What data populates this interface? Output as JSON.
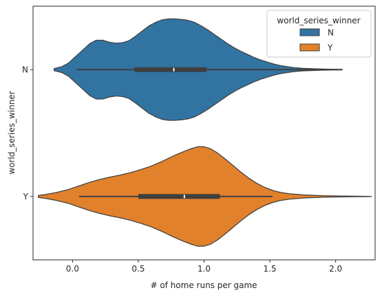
{
  "chart_data": {
    "type": "violin",
    "orientation": "horizontal",
    "xlabel": "# of home runs per game",
    "ylabel": "world_series_winner",
    "xlim": [
      -0.3,
      2.3
    ],
    "xticks": [
      0.0,
      0.5,
      1.0,
      1.5,
      2.0
    ],
    "xtick_labels": [
      "0.0",
      "0.5",
      "1.0",
      "1.5",
      "2.0"
    ],
    "categories": [
      "N",
      "Y"
    ],
    "legend": {
      "title": "world_series_winner",
      "placement": "top-right",
      "entries": [
        {
          "label": "N",
          "color": "#3274a1"
        },
        {
          "label": "Y",
          "color": "#e1812c"
        }
      ]
    },
    "series": [
      {
        "name": "N",
        "color": "#3274a1",
        "whisker": [
          0.03,
          2.05
        ],
        "quartiles": [
          0.47,
          1.02
        ],
        "median": 0.77,
        "density": [
          [
            -0.14,
            0.02
          ],
          [
            -0.08,
            0.06
          ],
          [
            -0.03,
            0.13
          ],
          [
            0.02,
            0.25
          ],
          [
            0.08,
            0.39
          ],
          [
            0.13,
            0.51
          ],
          [
            0.18,
            0.58
          ],
          [
            0.23,
            0.58
          ],
          [
            0.28,
            0.54
          ],
          [
            0.33,
            0.52
          ],
          [
            0.38,
            0.53
          ],
          [
            0.43,
            0.57
          ],
          [
            0.48,
            0.66
          ],
          [
            0.53,
            0.76
          ],
          [
            0.58,
            0.86
          ],
          [
            0.63,
            0.93
          ],
          [
            0.68,
            0.98
          ],
          [
            0.73,
            1.0
          ],
          [
            0.78,
            1.0
          ],
          [
            0.83,
            0.99
          ],
          [
            0.88,
            0.97
          ],
          [
            0.93,
            0.93
          ],
          [
            0.98,
            0.86
          ],
          [
            1.03,
            0.78
          ],
          [
            1.08,
            0.69
          ],
          [
            1.13,
            0.6
          ],
          [
            1.18,
            0.51
          ],
          [
            1.23,
            0.43
          ],
          [
            1.28,
            0.36
          ],
          [
            1.33,
            0.3
          ],
          [
            1.38,
            0.24
          ],
          [
            1.43,
            0.19
          ],
          [
            1.48,
            0.15
          ],
          [
            1.53,
            0.11
          ],
          [
            1.58,
            0.08
          ],
          [
            1.63,
            0.06
          ],
          [
            1.68,
            0.04
          ],
          [
            1.75,
            0.025
          ],
          [
            1.85,
            0.015
          ],
          [
            1.95,
            0.008
          ],
          [
            2.05,
            0.004
          ]
        ]
      },
      {
        "name": "Y",
        "color": "#e1812c",
        "whisker": [
          0.05,
          1.52
        ],
        "quartiles": [
          0.5,
          1.12
        ],
        "median": 0.85,
        "density": [
          [
            -0.26,
            0.02
          ],
          [
            -0.2,
            0.04
          ],
          [
            -0.12,
            0.08
          ],
          [
            -0.04,
            0.13
          ],
          [
            0.04,
            0.2
          ],
          [
            0.12,
            0.27
          ],
          [
            0.2,
            0.33
          ],
          [
            0.28,
            0.38
          ],
          [
            0.36,
            0.42
          ],
          [
            0.44,
            0.47
          ],
          [
            0.52,
            0.53
          ],
          [
            0.6,
            0.6
          ],
          [
            0.68,
            0.69
          ],
          [
            0.76,
            0.79
          ],
          [
            0.84,
            0.88
          ],
          [
            0.9,
            0.94
          ],
          [
            0.95,
            0.98
          ],
          [
            1.0,
            0.98
          ],
          [
            1.05,
            0.94
          ],
          [
            1.1,
            0.86
          ],
          [
            1.16,
            0.74
          ],
          [
            1.22,
            0.61
          ],
          [
            1.28,
            0.48
          ],
          [
            1.34,
            0.36
          ],
          [
            1.4,
            0.26
          ],
          [
            1.46,
            0.18
          ],
          [
            1.52,
            0.12
          ],
          [
            1.58,
            0.08
          ],
          [
            1.66,
            0.05
          ],
          [
            1.76,
            0.03
          ],
          [
            1.9,
            0.015
          ],
          [
            2.05,
            0.008
          ],
          [
            2.2,
            0.004
          ],
          [
            2.27,
            0.002
          ]
        ]
      }
    ]
  }
}
